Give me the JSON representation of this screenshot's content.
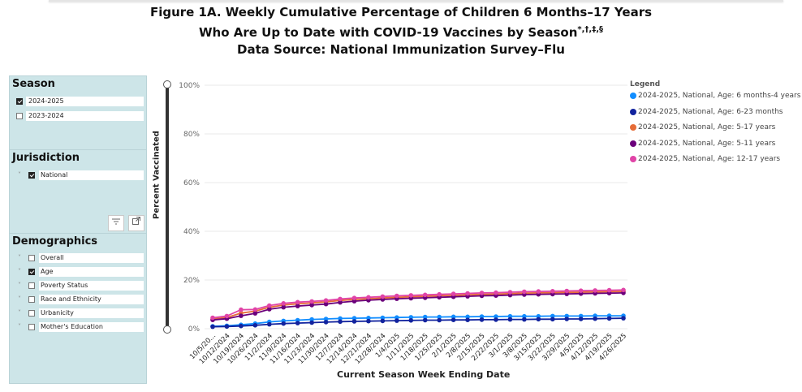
{
  "title": {
    "line1": "Figure 1A. Weekly Cumulative Percentage of Children 6 Months–17 Years",
    "line2": "Who Are Up to Date with COVID-19 Vaccines by Season",
    "line2_marks": "*,†,‡,§",
    "line3": "Data Source: National Immunization Survey–Flu"
  },
  "season_panel": {
    "title": "Season",
    "options": [
      {
        "label": "2024-2025",
        "checked": true
      },
      {
        "label": "2023-2024",
        "checked": false
      }
    ]
  },
  "jurisdiction_panel": {
    "title": "Jurisdiction",
    "options": [
      {
        "label": "National",
        "checked": true,
        "chevron": "˅"
      }
    ],
    "tools": {
      "filter_icon": "filter-icon",
      "expand_icon": "expand-icon"
    }
  },
  "demographics_panel": {
    "title": "Demographics",
    "options": [
      {
        "label": "Overall",
        "checked": false
      },
      {
        "label": "Age",
        "checked": true
      },
      {
        "label": "Poverty Status",
        "checked": false
      },
      {
        "label": "Race and Ethnicity",
        "checked": false
      },
      {
        "label": "Urbanicity",
        "checked": false
      },
      {
        "label": "Mother's Education",
        "checked": false
      }
    ]
  },
  "legend": {
    "title": "Legend"
  },
  "colors": {
    "panel_bg": "#cde5e8",
    "grid": "#e8e8e8"
  },
  "chart_data": {
    "type": "line",
    "ylabel": "Percent Vaccinated",
    "xlabel": "Current Season Week Ending Date",
    "ylim": [
      0,
      100
    ],
    "yticks": [
      0,
      20,
      40,
      60,
      80,
      100
    ],
    "ytick_labels": [
      "0%",
      "20%",
      "40%",
      "60%",
      "80%",
      "100%"
    ],
    "grid": true,
    "legend_position": "right",
    "x": [
      "10/5/20...",
      "10/12/2024",
      "10/19/2024",
      "10/26/2024",
      "11/2/2024",
      "11/9/2024",
      "11/16/2024",
      "11/23/2024",
      "11/30/2024",
      "12/7/2024",
      "12/14/2024",
      "12/21/2024",
      "12/28/2024",
      "1/4/2025",
      "1/11/2025",
      "1/18/2025",
      "1/25/2025",
      "2/1/2025",
      "2/8/2025",
      "2/15/2025",
      "2/22/2025",
      "3/1/2025",
      "3/8/2025",
      "3/15/2025",
      "3/22/2025",
      "3/29/2025",
      "4/5/2025",
      "4/12/2025",
      "4/19/2025",
      "4/26/2025"
    ],
    "series": [
      {
        "name": "2024-2025, National, Age: 6 months-4 years",
        "color": "#118dff",
        "values": [
          1.0,
          1.2,
          1.6,
          2.1,
          2.8,
          3.2,
          3.5,
          3.8,
          4.0,
          4.2,
          4.3,
          4.4,
          4.5,
          4.6,
          4.7,
          4.8,
          4.8,
          4.9,
          4.9,
          5.0,
          5.0,
          5.1,
          5.1,
          5.1,
          5.2,
          5.2,
          5.2,
          5.3,
          5.3,
          5.3
        ]
      },
      {
        "name": "2024-2025, National, Age: 6-23 months",
        "color": "#12239e",
        "values": [
          0.8,
          0.9,
          1.1,
          1.4,
          1.8,
          2.1,
          2.3,
          2.5,
          2.7,
          2.9,
          3.0,
          3.1,
          3.2,
          3.3,
          3.4,
          3.5,
          3.5,
          3.6,
          3.6,
          3.7,
          3.7,
          3.8,
          3.8,
          3.9,
          3.9,
          4.0,
          4.0,
          4.1,
          4.2,
          4.3
        ]
      },
      {
        "name": "2024-2025, National, Age: 5-17 years",
        "color": "#e66c37",
        "values": [
          4.0,
          4.6,
          6.4,
          7.2,
          8.8,
          9.7,
          10.2,
          10.6,
          11.0,
          11.6,
          12.0,
          12.3,
          12.6,
          12.9,
          13.1,
          13.3,
          13.5,
          13.7,
          13.9,
          14.1,
          14.2,
          14.4,
          14.6,
          14.7,
          14.8,
          14.9,
          15.0,
          15.1,
          15.2,
          15.3
        ]
      },
      {
        "name": "2024-2025, National, Age: 5-11 years",
        "color": "#6b007b",
        "values": [
          3.6,
          4.1,
          5.3,
          6.3,
          8.0,
          8.8,
          9.3,
          9.7,
          10.1,
          10.8,
          11.3,
          11.7,
          12.0,
          12.3,
          12.5,
          12.7,
          12.9,
          13.1,
          13.3,
          13.5,
          13.6,
          13.8,
          14.0,
          14.1,
          14.2,
          14.3,
          14.4,
          14.5,
          14.6,
          14.7
        ]
      },
      {
        "name": "2024-2025, National, Age: 12-17 years",
        "color": "#e044a7",
        "values": [
          4.5,
          5.2,
          7.8,
          7.9,
          9.5,
          10.4,
          10.9,
          11.2,
          11.6,
          12.2,
          12.6,
          12.9,
          13.2,
          13.5,
          13.7,
          13.9,
          14.1,
          14.3,
          14.5,
          14.7,
          14.8,
          15.0,
          15.2,
          15.3,
          15.4,
          15.5,
          15.6,
          15.7,
          15.8,
          15.9
        ]
      }
    ]
  }
}
